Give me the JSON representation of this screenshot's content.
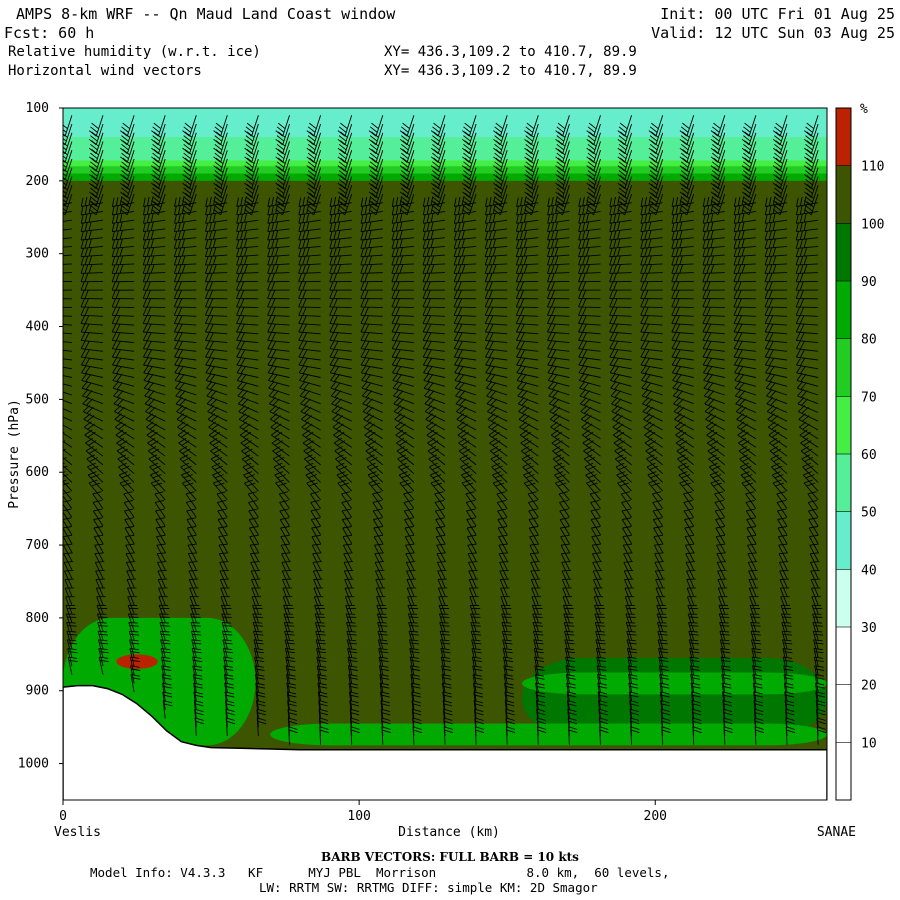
{
  "header": {
    "title": "AMPS 8-km WRF -- Qn Maud Land Coast window",
    "forecast": "Fcst:    60 h",
    "init": "Init: 00 UTC Fri 01 Aug 25",
    "valid": "Valid: 12 UTC Sun 03 Aug 25",
    "field1": "Relative humidity (w.r.t. ice)",
    "field2": "Horizontal wind vectors",
    "xy1": "XY= 436.3,109.2 to 410.7, 89.9",
    "xy2": "XY= 436.3,109.2 to 410.7, 89.9"
  },
  "chart_data": {
    "type": "heatmap",
    "title": "Relative humidity (w.r.t. ice)",
    "xlabel": "Distance (km)",
    "ylabel": "Pressure (hPa)",
    "xlim": [
      0,
      258
    ],
    "ylim": [
      1050,
      100
    ],
    "x_ticks": [
      "0",
      "100",
      "200"
    ],
    "x_tick_values": [
      0,
      100,
      200
    ],
    "y_ticks": [
      "100",
      "200",
      "300",
      "400",
      "500",
      "600",
      "700",
      "800",
      "900",
      "1000"
    ],
    "y_tick_values": [
      100,
      200,
      300,
      400,
      500,
      600,
      700,
      800,
      900,
      1000
    ],
    "left_endpoint": "Veslis",
    "right_endpoint": "SANAE",
    "colorbar": {
      "unit": "%",
      "labels": [
        "10",
        "20",
        "30",
        "40",
        "50",
        "60",
        "70",
        "80",
        "90",
        "100",
        "110"
      ],
      "levels": [
        0,
        10,
        20,
        30,
        40,
        50,
        60,
        70,
        80,
        90,
        100,
        110,
        120
      ],
      "colors": [
        "#ffffff",
        "#ffffff",
        "#ffffff",
        "#ccffee",
        "#66eecc",
        "#55ee99",
        "#44ee44",
        "#22cc22",
        "#00aa00",
        "#007700",
        "#3d5500",
        "#bb2200"
      ]
    },
    "surface_pressure": {
      "x": [
        0,
        5,
        10,
        15,
        20,
        25,
        30,
        35,
        40,
        45,
        50,
        60,
        70,
        80,
        90,
        100,
        120,
        150,
        200,
        258
      ],
      "p": [
        895,
        893,
        893,
        897,
        905,
        918,
        935,
        955,
        970,
        975,
        978,
        979,
        980,
        981,
        981,
        981,
        981,
        981,
        981,
        981
      ]
    },
    "rh_regions": [
      {
        "name": "upper-40-50",
        "rh": 45,
        "x": [
          0,
          258
        ],
        "p": [
          100,
          155
        ]
      },
      {
        "name": "upper-50-60",
        "rh": 55,
        "x": [
          0,
          258
        ],
        "p": [
          140,
          178
        ]
      },
      {
        "name": "upper-60-70",
        "rh": 65,
        "x": [
          0,
          258
        ],
        "p": [
          172,
          195
        ]
      },
      {
        "name": "upper-70-80",
        "rh": 75,
        "x": [
          0,
          258
        ],
        "p": [
          180,
          200
        ]
      },
      {
        "name": "upper-80-90",
        "rh": 85,
        "x": [
          0,
          258
        ],
        "p": [
          190,
          222
        ]
      },
      {
        "name": "mid-100-110",
        "rh": 105,
        "x": [
          0,
          258
        ],
        "p": [
          200,
          980
        ]
      },
      {
        "name": "low-90-100-right",
        "rh": 95,
        "x": [
          155,
          258
        ],
        "p": [
          855,
          965
        ]
      },
      {
        "name": "low-80-90-right",
        "rh": 85,
        "x": [
          155,
          258
        ],
        "p": [
          875,
          905
        ]
      },
      {
        "name": "low-80-90-band",
        "rh": 85,
        "x": [
          70,
          258
        ],
        "p": [
          945,
          975
        ]
      },
      {
        "name": "low-80-90-left",
        "rh": 85,
        "x": [
          0,
          65
        ],
        "p": [
          800,
          975
        ]
      },
      {
        "name": "red-patch",
        "rh": 115,
        "x": [
          18,
          32
        ],
        "p": [
          850,
          870
        ]
      }
    ],
    "wind_barbs": {
      "description_label": "BARB VECTORS:  FULL BARB = 10 kts"
    }
  },
  "footer": {
    "barb_label": "BARB VECTORS:  FULL BARB = 10 kts",
    "model_info": "Model Info: V4.3.3   KF      MYJ PBL  Morrison            8.0 km,  60 levels,",
    "model_info2": "LW: RRTM SW: RRTMG   DIFF: simple KM: 2D Smagor"
  }
}
